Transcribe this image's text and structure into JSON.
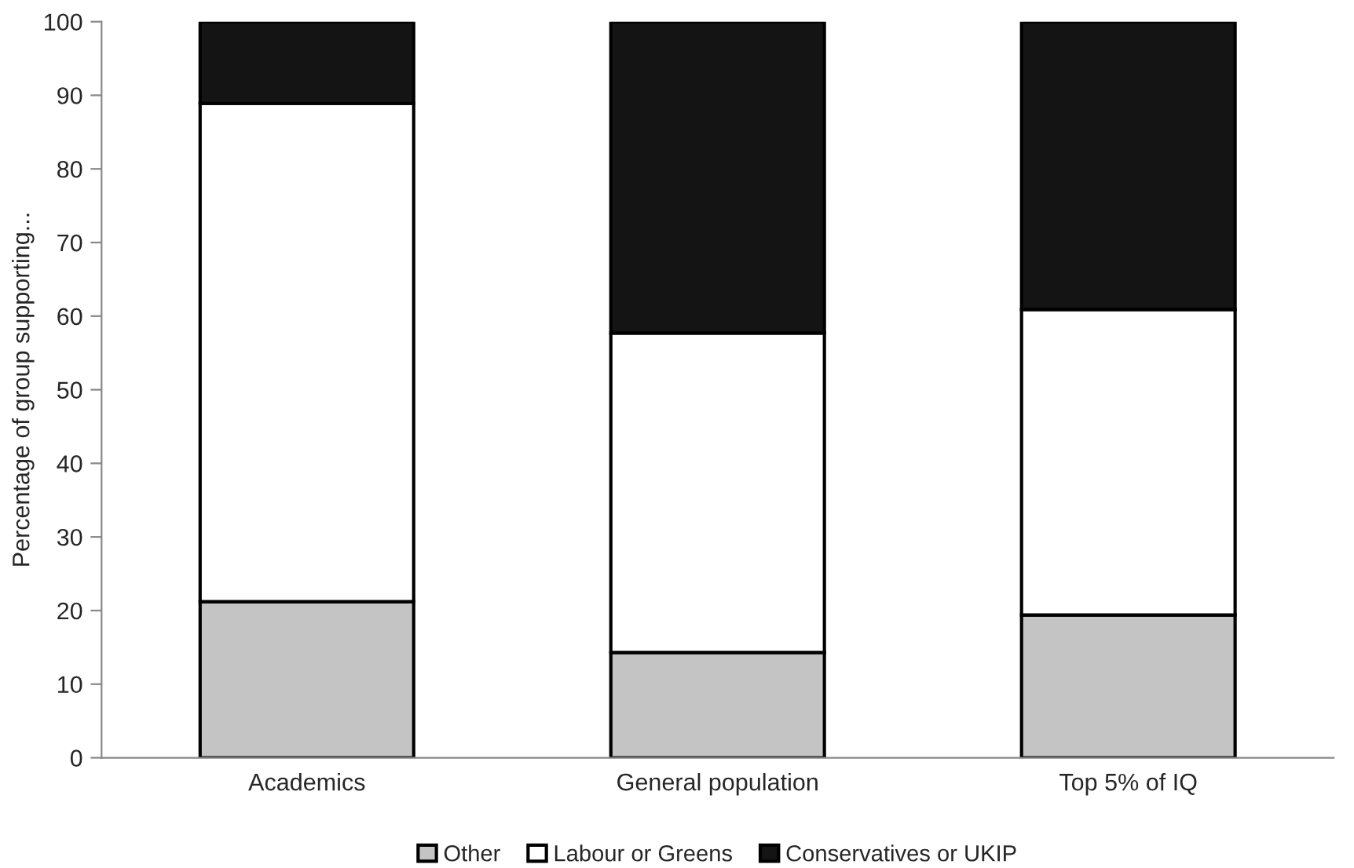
{
  "chart_data": {
    "type": "bar",
    "stacked": true,
    "ylabel": "Percentage of group supporting...",
    "categories": [
      "Academics",
      "General population",
      "Top 5% of IQ"
    ],
    "series": [
      {
        "name": "Other",
        "color": "#c4c4c4",
        "values": [
          21.2,
          14.3,
          19.4
        ]
      },
      {
        "name": "Labour or Greens",
        "color": "#ffffff",
        "values": [
          67.7,
          43.4,
          41.5
        ]
      },
      {
        "name": "Conservatives or UKIP",
        "color": "#141414",
        "values": [
          11.1,
          42.3,
          39.1
        ]
      }
    ],
    "ylim": [
      0,
      100
    ],
    "yticks": [
      0,
      10,
      20,
      30,
      40,
      50,
      60,
      70,
      80,
      90,
      100
    ],
    "grid": false,
    "legend": "bottom"
  }
}
